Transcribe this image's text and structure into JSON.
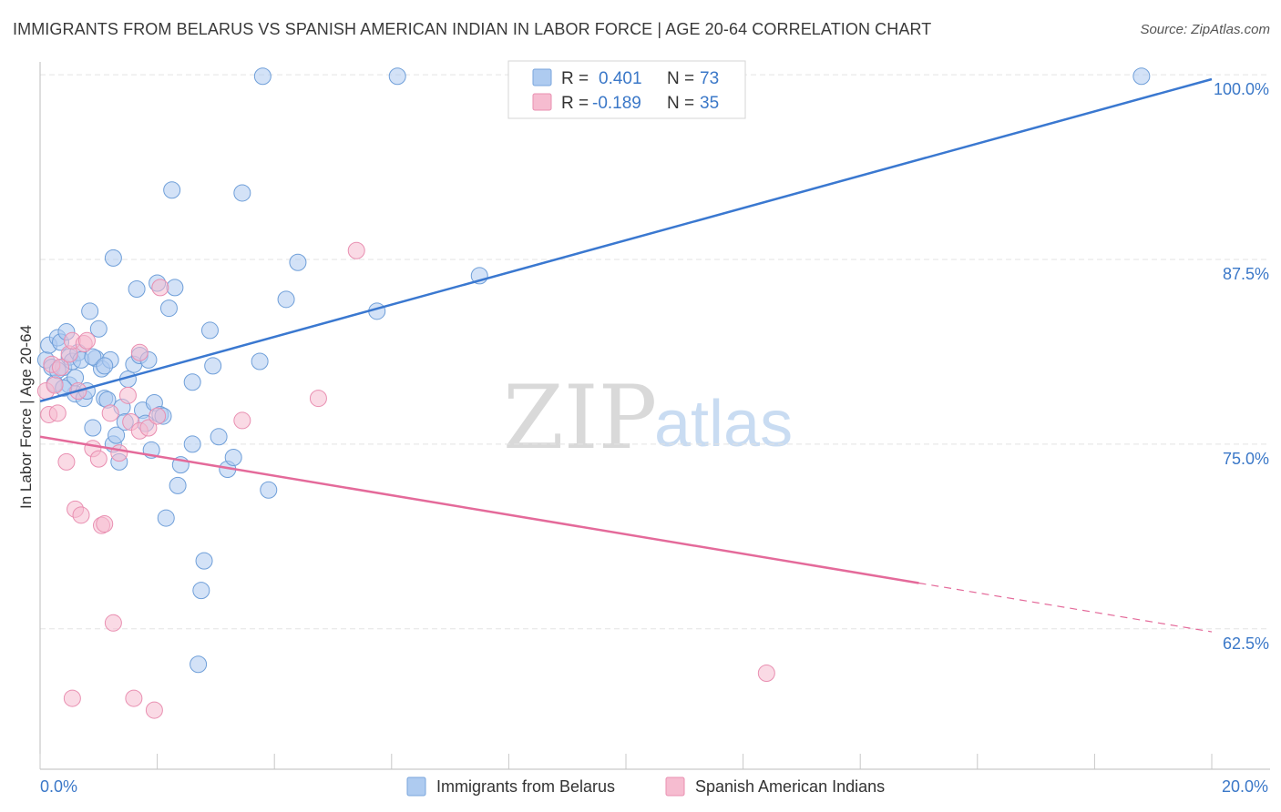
{
  "header": {
    "title": "IMMIGRANTS FROM BELARUS VS SPANISH AMERICAN INDIAN IN LABOR FORCE | AGE 20-64 CORRELATION CHART",
    "source": "Source: ZipAtlas.com"
  },
  "watermark": {
    "zip": "ZIP",
    "atlas": "atlas"
  },
  "colors": {
    "blue": "#3a78d0",
    "blue_fill": "#aecbf0",
    "pink": "#e46a9a",
    "pink_fill": "#f6bcd0",
    "grid": "#e3e3e3",
    "tick_label": "#3b78c8"
  },
  "legend": {
    "rows": [
      {
        "r_label": "R =",
        "r_value": "0.401",
        "n_label": "N =",
        "n_value": "73"
      },
      {
        "r_label": "R =",
        "r_value": "-0.189",
        "n_label": "N =",
        "n_value": "35"
      }
    ]
  },
  "chart_data": {
    "type": "scatter",
    "title": "IMMIGRANTS FROM BELARUS VS SPANISH AMERICAN INDIAN IN LABOR FORCE | AGE 20-64 CORRELATION CHART",
    "xlabel": "",
    "ylabel": "In Labor Force | Age 20-64",
    "xlim": [
      0,
      20
    ],
    "ylim": [
      53,
      100.5
    ],
    "x_tick_labels": [
      "0.0%",
      "20.0%"
    ],
    "y_ticks": [
      62.5,
      75.0,
      87.5,
      100.0
    ],
    "y_tick_labels": [
      "62.5%",
      "75.0%",
      "87.5%",
      "100.0%"
    ],
    "series": [
      {
        "name": "Immigrants from Belarus",
        "color": "#3a78d0",
        "R": 0.401,
        "N": 73,
        "trend": {
          "x0": 0,
          "y0": 77.9,
          "x1": 20,
          "y1": 99.7
        },
        "points": [
          [
            0.1,
            80.7
          ],
          [
            0.15,
            81.7
          ],
          [
            0.2,
            80.2
          ],
          [
            0.25,
            79.1
          ],
          [
            0.3,
            82.2
          ],
          [
            0.35,
            81.9
          ],
          [
            0.4,
            80.2
          ],
          [
            0.45,
            82.6
          ],
          [
            0.5,
            80.9
          ],
          [
            0.55,
            80.6
          ],
          [
            0.6,
            78.4
          ],
          [
            0.65,
            81.2
          ],
          [
            0.7,
            80.7
          ],
          [
            0.75,
            78.1
          ],
          [
            0.8,
            78.6
          ],
          [
            0.85,
            84.0
          ],
          [
            0.9,
            76.1
          ],
          [
            0.95,
            80.8
          ],
          [
            1.0,
            82.8
          ],
          [
            1.05,
            80.1
          ],
          [
            1.1,
            78.1
          ],
          [
            1.15,
            78.0
          ],
          [
            1.2,
            80.7
          ],
          [
            1.25,
            75.0
          ],
          [
            1.3,
            75.6
          ],
          [
            1.35,
            73.8
          ],
          [
            1.4,
            77.5
          ],
          [
            1.45,
            76.5
          ],
          [
            1.5,
            79.4
          ],
          [
            1.6,
            80.4
          ],
          [
            1.65,
            85.5
          ],
          [
            1.7,
            81.0
          ],
          [
            1.75,
            77.3
          ],
          [
            1.8,
            76.4
          ],
          [
            1.85,
            80.7
          ],
          [
            1.9,
            74.6
          ],
          [
            1.95,
            77.8
          ],
          [
            2.0,
            85.9
          ],
          [
            2.05,
            77.0
          ],
          [
            2.1,
            76.9
          ],
          [
            2.15,
            70.0
          ],
          [
            2.2,
            84.2
          ],
          [
            2.25,
            92.2
          ],
          [
            2.3,
            85.6
          ],
          [
            2.35,
            72.2
          ],
          [
            2.4,
            73.6
          ],
          [
            2.6,
            75.0
          ],
          [
            2.6,
            79.2
          ],
          [
            2.7,
            60.1
          ],
          [
            2.75,
            65.1
          ],
          [
            2.8,
            67.1
          ],
          [
            2.9,
            82.7
          ],
          [
            2.95,
            80.3
          ],
          [
            3.05,
            75.5
          ],
          [
            3.2,
            73.3
          ],
          [
            3.3,
            74.1
          ],
          [
            3.45,
            92.0
          ],
          [
            3.75,
            80.6
          ],
          [
            3.9,
            71.9
          ],
          [
            4.2,
            84.8
          ],
          [
            4.4,
            87.3
          ],
          [
            5.75,
            84.0
          ],
          [
            7.5,
            86.4
          ],
          [
            3.8,
            99.9
          ],
          [
            6.1,
            99.9
          ],
          [
            18.8,
            99.9
          ],
          [
            1.25,
            87.6
          ],
          [
            0.5,
            79.0
          ],
          [
            0.9,
            80.9
          ],
          [
            1.1,
            80.3
          ],
          [
            0.3,
            80.0
          ],
          [
            0.6,
            79.5
          ],
          [
            0.4,
            78.8
          ]
        ]
      },
      {
        "name": "Spanish American Indians",
        "color": "#e46a9a",
        "R": -0.189,
        "N": 35,
        "trend": {
          "x0": 0,
          "y0": 75.5,
          "x1": 15.0,
          "y1": 65.6,
          "dash_x1": 20,
          "dash_y1": 62.3
        },
        "points": [
          [
            0.1,
            78.6
          ],
          [
            0.15,
            77.0
          ],
          [
            0.2,
            80.4
          ],
          [
            0.25,
            79.0
          ],
          [
            0.3,
            77.1
          ],
          [
            0.35,
            80.2
          ],
          [
            0.45,
            73.8
          ],
          [
            0.5,
            81.1
          ],
          [
            0.55,
            82.0
          ],
          [
            0.6,
            70.6
          ],
          [
            0.65,
            78.6
          ],
          [
            0.7,
            70.2
          ],
          [
            0.75,
            81.8
          ],
          [
            0.8,
            82.0
          ],
          [
            0.9,
            74.7
          ],
          [
            1.0,
            74.0
          ],
          [
            1.05,
            69.5
          ],
          [
            1.1,
            69.6
          ],
          [
            1.2,
            77.1
          ],
          [
            1.25,
            62.9
          ],
          [
            1.35,
            74.4
          ],
          [
            1.5,
            78.3
          ],
          [
            1.55,
            76.5
          ],
          [
            1.6,
            57.8
          ],
          [
            1.7,
            75.9
          ],
          [
            1.85,
            76.1
          ],
          [
            1.95,
            57.0
          ],
          [
            2.0,
            76.9
          ],
          [
            2.05,
            85.6
          ],
          [
            1.7,
            81.2
          ],
          [
            3.45,
            76.6
          ],
          [
            4.75,
            78.1
          ],
          [
            5.4,
            88.1
          ],
          [
            12.4,
            59.5
          ],
          [
            0.55,
            57.8
          ]
        ]
      }
    ]
  },
  "bottom_legend": [
    {
      "label": "Immigrants from Belarus"
    },
    {
      "label": "Spanish American Indians"
    }
  ]
}
